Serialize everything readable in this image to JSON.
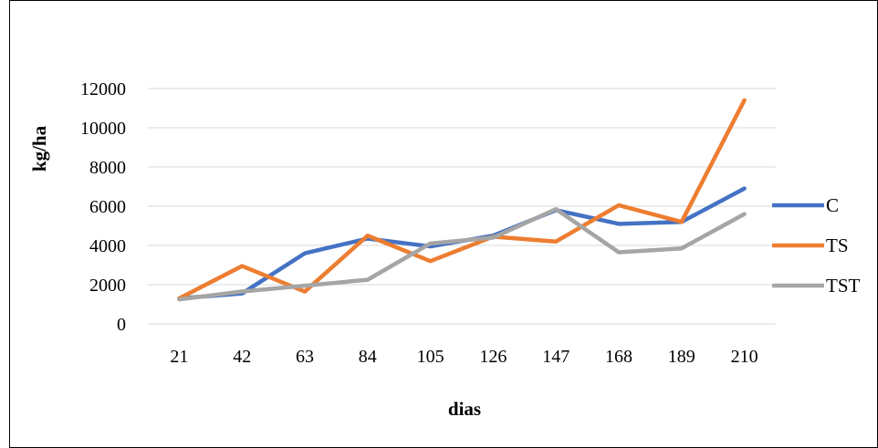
{
  "chart_data": {
    "type": "line",
    "xlabel": "dias",
    "ylabel": "kg/ha",
    "categories": [
      "21",
      "42",
      "63",
      "84",
      "105",
      "126",
      "147",
      "168",
      "189",
      "210"
    ],
    "ylim": [
      0,
      12000
    ],
    "yticks": [
      0,
      2000,
      4000,
      6000,
      8000,
      10000,
      12000
    ],
    "grid": true,
    "legend": "right",
    "series": [
      {
        "name": "C",
        "color": "#4472C4",
        "values": [
          1300,
          1550,
          3600,
          4350,
          3950,
          4500,
          5800,
          5100,
          5200,
          6900
        ]
      },
      {
        "name": "TS",
        "color": "#ED7D31",
        "values": [
          1300,
          2950,
          1650,
          4500,
          3200,
          4450,
          4200,
          6050,
          5200,
          11400
        ]
      },
      {
        "name": "TST",
        "color": "#A5A5A5",
        "values": [
          1250,
          1650,
          1950,
          2250,
          4100,
          4400,
          5850,
          3650,
          3850,
          5600
        ]
      }
    ]
  }
}
